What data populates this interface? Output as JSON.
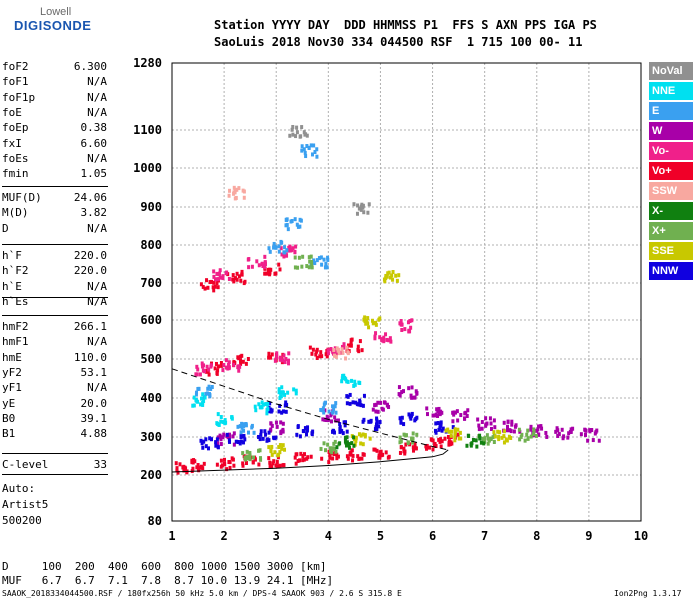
{
  "logo": {
    "top": "Lowell",
    "main": "DIGISONDE"
  },
  "header": {
    "line1": "Station YYYY DAY  DDD HHMMSS P1  FFS S AXN PPS IGA PS",
    "line2": "SaoLuis 2018 Nov30 334 044500 RSF  1 715 100 00- 11"
  },
  "params_group1": [
    {
      "name": "foF2",
      "value": "6.300"
    },
    {
      "name": "foF1",
      "value": "N/A"
    },
    {
      "name": "foF1p",
      "value": "N/A"
    },
    {
      "name": "foE",
      "value": "N/A"
    },
    {
      "name": "foEp",
      "value": "0.38"
    },
    {
      "name": "fxI",
      "value": "6.60"
    },
    {
      "name": "foEs",
      "value": "N/A"
    },
    {
      "name": "fmin",
      "value": "1.05"
    }
  ],
  "params_group2": [
    {
      "name": "MUF(D)",
      "value": "24.06"
    },
    {
      "name": "M(D)",
      "value": "3.82"
    },
    {
      "name": "D",
      "value": "N/A"
    }
  ],
  "params_group3": [
    {
      "name": "h`F",
      "value": "220.0"
    },
    {
      "name": "h`F2",
      "value": "220.0"
    },
    {
      "name": "h`E",
      "value": "N/A"
    },
    {
      "name": "h`Es",
      "value": "N/A"
    }
  ],
  "params_group4": [
    {
      "name": "hmF2",
      "value": "266.1"
    },
    {
      "name": "hmF1",
      "value": "N/A"
    },
    {
      "name": "hmE",
      "value": "110.0"
    },
    {
      "name": "yF2",
      "value": "53.1"
    },
    {
      "name": "yF1",
      "value": "N/A"
    },
    {
      "name": "yE",
      "value": "20.0"
    },
    {
      "name": "B0",
      "value": "39.1"
    },
    {
      "name": "B1",
      "value": "4.88"
    }
  ],
  "params_group5": [
    {
      "name": "C-level",
      "value": "33"
    }
  ],
  "auto": {
    "line1": "Auto:",
    "line2": "Artist5",
    "line3": "500200"
  },
  "legend": [
    {
      "label": "NoVal",
      "color": "#909090"
    },
    {
      "label": "NNE",
      "color": "#00e0f0"
    },
    {
      "label": "E",
      "color": "#3aa0f0"
    },
    {
      "label": "W",
      "color": "#a800a8"
    },
    {
      "label": "Vo-",
      "color": "#f0208a"
    },
    {
      "label": "Vo+",
      "color": "#f00028"
    },
    {
      "label": "SSW",
      "color": "#f8a8a0"
    },
    {
      "label": "X-",
      "color": "#108010"
    },
    {
      "label": "X+",
      "color": "#70b050"
    },
    {
      "label": "SSE",
      "color": "#c8c800"
    },
    {
      "label": "NNW",
      "color": "#1000e0"
    }
  ],
  "chart_data": {
    "type": "scatter",
    "title": "",
    "xlabel": "",
    "ylabel": "",
    "xlim": [
      1,
      10
    ],
    "ylim": [
      80,
      1280
    ],
    "x_ticks": [
      1,
      2,
      3,
      4,
      5,
      6,
      7,
      8,
      9,
      10
    ],
    "y_ticks": [
      80,
      200,
      300,
      400,
      500,
      600,
      700,
      800,
      900,
      1000,
      1100,
      1280
    ],
    "grid": true,
    "legend_position": "right",
    "series": [
      {
        "name": "Vo+",
        "color": "#f00028",
        "points": [
          [
            1.2,
            225
          ],
          [
            1.5,
            230
          ],
          [
            2.0,
            235
          ],
          [
            2.5,
            240
          ],
          [
            3.0,
            242
          ],
          [
            3.5,
            248
          ],
          [
            4.0,
            252
          ],
          [
            4.5,
            258
          ],
          [
            5.0,
            265
          ],
          [
            5.5,
            272
          ],
          [
            6.0,
            285
          ],
          [
            6.3,
            300
          ],
          [
            1.8,
            480
          ],
          [
            2.3,
            500
          ],
          [
            3.0,
            510
          ],
          [
            3.8,
            520
          ],
          [
            4.5,
            540
          ],
          [
            1.7,
            700
          ],
          [
            2.2,
            720
          ],
          [
            2.9,
            740
          ]
        ]
      },
      {
        "name": "W",
        "color": "#a800a8",
        "points": [
          [
            2.0,
            300
          ],
          [
            3.0,
            330
          ],
          [
            4.0,
            360
          ],
          [
            5.0,
            380
          ],
          [
            6.0,
            370
          ],
          [
            7.0,
            340
          ],
          [
            7.5,
            330
          ],
          [
            8.0,
            320
          ],
          [
            8.5,
            315
          ],
          [
            9.0,
            310
          ],
          [
            5.5,
            420
          ],
          [
            6.5,
            360
          ]
        ]
      },
      {
        "name": "NNW",
        "color": "#1000e0",
        "points": [
          [
            1.7,
            290
          ],
          [
            2.2,
            300
          ],
          [
            2.8,
            310
          ],
          [
            3.5,
            320
          ],
          [
            4.2,
            330
          ],
          [
            4.8,
            340
          ],
          [
            5.5,
            350
          ],
          [
            6.2,
            330
          ],
          [
            3.0,
            380
          ],
          [
            4.5,
            400
          ]
        ]
      },
      {
        "name": "Vo-",
        "color": "#f0208a",
        "points": [
          [
            1.6,
            480
          ],
          [
            2.1,
            490
          ],
          [
            3.1,
            505
          ],
          [
            4.1,
            530
          ],
          [
            5.0,
            560
          ],
          [
            5.5,
            590
          ],
          [
            1.9,
            730
          ],
          [
            2.6,
            760
          ],
          [
            3.2,
            790
          ]
        ]
      },
      {
        "name": "E",
        "color": "#3aa0f0",
        "points": [
          [
            1.6,
            420
          ],
          [
            2.4,
            330
          ],
          [
            3.0,
            800
          ],
          [
            3.3,
            860
          ],
          [
            3.6,
            1050
          ],
          [
            4.0,
            380
          ],
          [
            3.8,
            760
          ]
        ]
      },
      {
        "name": "NNE",
        "color": "#00e0f0",
        "points": [
          [
            1.5,
            400
          ],
          [
            2.0,
            350
          ],
          [
            2.7,
            380
          ],
          [
            3.2,
            420
          ],
          [
            4.4,
            450
          ]
        ]
      },
      {
        "name": "X+",
        "color": "#70b050",
        "points": [
          [
            2.5,
            260
          ],
          [
            4.0,
            280
          ],
          [
            5.5,
            300
          ],
          [
            7.0,
            300
          ],
          [
            7.8,
            310
          ],
          [
            3.5,
            760
          ]
        ]
      },
      {
        "name": "SSE",
        "color": "#c8c800",
        "points": [
          [
            3.0,
            270
          ],
          [
            4.6,
            300
          ],
          [
            6.4,
            310
          ],
          [
            7.3,
            305
          ],
          [
            4.8,
            600
          ],
          [
            5.2,
            720
          ]
        ]
      },
      {
        "name": "X-",
        "color": "#108010",
        "points": [
          [
            4.3,
            290
          ],
          [
            6.8,
            295
          ]
        ]
      },
      {
        "name": "SSW",
        "color": "#f8a8a0",
        "points": [
          [
            2.2,
            940
          ],
          [
            4.2,
            520
          ]
        ]
      },
      {
        "name": "NoVal",
        "color": "#909090",
        "points": [
          [
            3.4,
            1100
          ],
          [
            4.6,
            900
          ]
        ]
      }
    ],
    "profile_solid": [
      [
        1.0,
        208
      ],
      [
        2.0,
        213
      ],
      [
        3.0,
        218
      ],
      [
        4.0,
        225
      ],
      [
        5.0,
        235
      ],
      [
        6.0,
        248
      ],
      [
        6.2,
        255
      ],
      [
        6.3,
        266
      ]
    ],
    "profile_dashed": [
      [
        1.0,
        475
      ],
      [
        2.0,
        430
      ],
      [
        3.0,
        385
      ],
      [
        4.0,
        345
      ],
      [
        5.0,
        310
      ],
      [
        6.0,
        275
      ],
      [
        6.3,
        266
      ]
    ]
  },
  "footer": {
    "d_line": "D     100  200  400  600  800 1000 1500 3000 [km]",
    "muf_line": "MUF   6.7  6.7  7.1  7.8  8.7 10.0 13.9 24.1 [MHz]",
    "file_line": "SAAOK_2018334044500.RSF / 180fx256h 50 kHz 5.0 km / DPS-4 SAAOK 903 / 2.6 S 315.8 E",
    "version": "Ion2Png 1.3.17"
  }
}
